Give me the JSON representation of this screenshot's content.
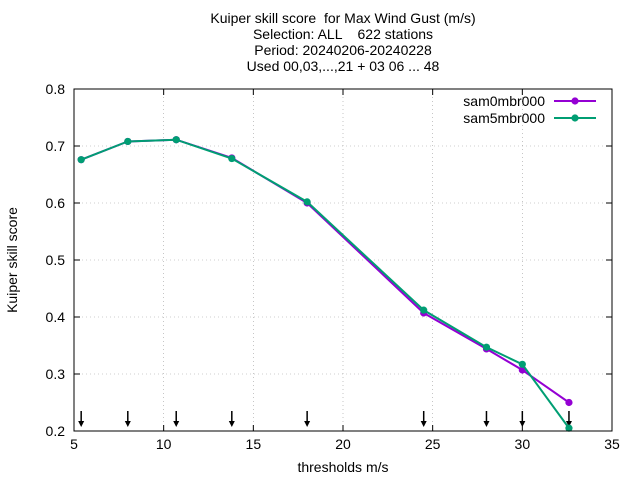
{
  "chart_data": {
    "type": "line",
    "title_lines": [
      "Kuiper skill score  for Max Wind Gust (m/s)",
      "Selection: ALL    622 stations",
      "Period: 20240206-20240228",
      "Used 00,03,...,21 + 03 06 ... 48"
    ],
    "xlabel": "thresholds m/s",
    "ylabel": "Kuiper skill score",
    "xlim": [
      5,
      35
    ],
    "ylim": [
      0.2,
      0.8
    ],
    "xticks": [
      "5",
      "10",
      "15",
      "20",
      "25",
      "30",
      "35"
    ],
    "yticks": [
      "0.2",
      "0.3",
      "0.4",
      "0.5",
      "0.6",
      "0.7",
      "0.8"
    ],
    "grid": true,
    "legend_position": "top-right",
    "threshold_markers": [
      5.4,
      8.0,
      10.7,
      13.8,
      18.0,
      24.5,
      28.0,
      30.0,
      32.6
    ],
    "series": [
      {
        "name": "sam0mbr000",
        "color": "#9400d3",
        "marker": "filled-circle",
        "x": [
          5.4,
          8.0,
          10.7,
          13.8,
          18.0,
          24.5,
          28.0,
          30.0,
          32.6
        ],
        "y": [
          0.676,
          0.708,
          0.711,
          0.679,
          0.6,
          0.407,
          0.344,
          0.307,
          0.25
        ]
      },
      {
        "name": "sam5mbr000",
        "color": "#009e73",
        "marker": "filled-circle",
        "x": [
          5.4,
          8.0,
          10.7,
          13.8,
          18.0,
          24.5,
          28.0,
          30.0,
          32.6
        ],
        "y": [
          0.676,
          0.708,
          0.711,
          0.678,
          0.602,
          0.412,
          0.347,
          0.317,
          0.205
        ]
      }
    ]
  }
}
